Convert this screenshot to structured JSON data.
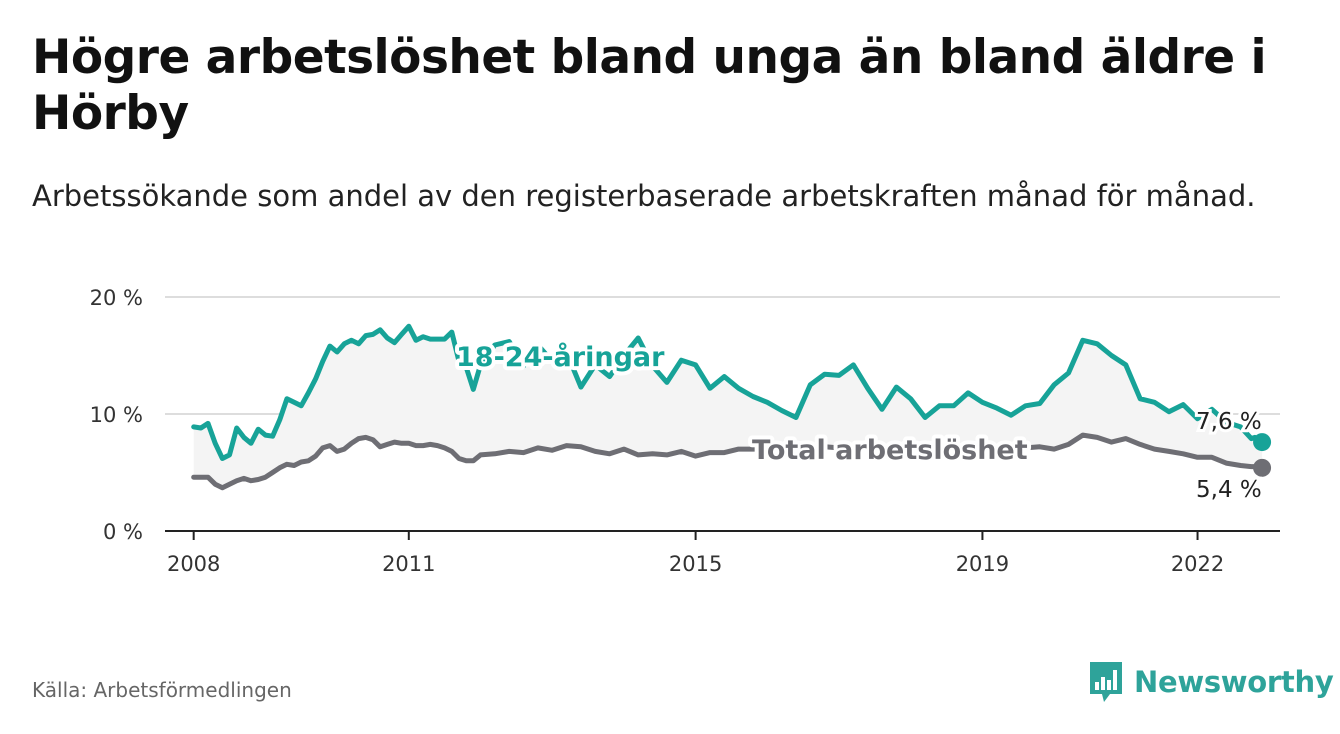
{
  "title": "Högre arbetslöshet bland unga än bland äldre i Hörby",
  "subtitle": "Arbetssökande som andel av den registerbaserade arbetskraften månad för månad.",
  "source": "Källa: Arbetsförmedlingen",
  "brand": {
    "name": "Newsworthy",
    "icon": "newsworthy-logo-icon"
  },
  "colors": {
    "youth": "#17a398",
    "total": "#6e6e74",
    "band": "#f4f4f4",
    "grid": "#dddddd",
    "axis": "#222222"
  },
  "chart_data": {
    "type": "line",
    "title": "Högre arbetslöshet bland unga än bland äldre i Hörby",
    "xlabel": "",
    "ylabel": "",
    "ylim": [
      0,
      20
    ],
    "yticks": [
      0,
      10,
      20
    ],
    "ytick_labels": [
      "0 %",
      "10 %",
      "20 %"
    ],
    "xlim": [
      2007.6,
      2023.15
    ],
    "xticks": [
      2008,
      2011,
      2015,
      2019,
      2022
    ],
    "xtick_labels": [
      "2008",
      "2011",
      "2015",
      "2019",
      "2022"
    ],
    "grid": true,
    "series": [
      {
        "name": "18-24-åringar",
        "label": "18-24-åringar",
        "end_label": "7,6 %",
        "x": [
          2008.0,
          2008.1,
          2008.2,
          2008.3,
          2008.4,
          2008.5,
          2008.6,
          2008.7,
          2008.8,
          2008.9,
          2009.0,
          2009.1,
          2009.2,
          2009.3,
          2009.4,
          2009.5,
          2009.6,
          2009.7,
          2009.8,
          2009.9,
          2010.0,
          2010.1,
          2010.2,
          2010.3,
          2010.4,
          2010.5,
          2010.6,
          2010.7,
          2010.8,
          2010.9,
          2011.0,
          2011.1,
          2011.2,
          2011.3,
          2011.4,
          2011.5,
          2011.6,
          2011.7,
          2011.8,
          2011.9,
          2012.0,
          2012.2,
          2012.4,
          2012.6,
          2012.8,
          2013.0,
          2013.2,
          2013.4,
          2013.6,
          2013.8,
          2014.0,
          2014.2,
          2014.4,
          2014.6,
          2014.8,
          2015.0,
          2015.2,
          2015.4,
          2015.6,
          2015.8,
          2016.0,
          2016.2,
          2016.4,
          2016.6,
          2016.8,
          2017.0,
          2017.2,
          2017.4,
          2017.6,
          2017.8,
          2018.0,
          2018.2,
          2018.4,
          2018.6,
          2018.8,
          2019.0,
          2019.2,
          2019.4,
          2019.6,
          2019.8,
          2020.0,
          2020.2,
          2020.4,
          2020.6,
          2020.8,
          2021.0,
          2021.2,
          2021.4,
          2021.6,
          2021.8,
          2022.0,
          2022.2,
          2022.4,
          2022.6,
          2022.75,
          2022.8,
          2022.9
        ],
        "values": [
          8.9,
          8.8,
          9.2,
          7.5,
          6.2,
          6.5,
          8.8,
          8.0,
          7.5,
          8.7,
          8.2,
          8.1,
          9.5,
          11.3,
          11.0,
          10.7,
          11.8,
          13.0,
          14.5,
          15.8,
          15.3,
          16.0,
          16.3,
          16.0,
          16.7,
          16.8,
          17.2,
          16.5,
          16.1,
          16.8,
          17.5,
          16.3,
          16.6,
          16.4,
          16.4,
          16.4,
          17.0,
          14.5,
          14.0,
          12.1,
          14.2,
          15.9,
          16.2,
          14.1,
          15.9,
          14.5,
          15.3,
          12.3,
          14.2,
          13.2,
          15.0,
          16.5,
          14.1,
          12.7,
          14.6,
          14.2,
          12.2,
          13.2,
          12.2,
          11.5,
          11.0,
          10.3,
          9.7,
          12.5,
          13.4,
          13.3,
          14.2,
          12.2,
          10.4,
          12.3,
          11.3,
          9.7,
          10.7,
          10.7,
          11.8,
          11.0,
          10.5,
          9.9,
          10.7,
          10.9,
          12.5,
          13.5,
          16.3,
          16.0,
          15.0,
          14.2,
          11.3,
          11.0,
          10.2,
          10.8,
          9.6,
          10.4,
          9.3,
          8.9,
          7.9,
          8.0,
          7.6
        ]
      },
      {
        "name": "Total arbetslöshet",
        "label": "Total arbetslöshet",
        "end_label": "5,4 %",
        "x": [
          2008.0,
          2008.1,
          2008.2,
          2008.3,
          2008.4,
          2008.5,
          2008.6,
          2008.7,
          2008.8,
          2008.9,
          2009.0,
          2009.1,
          2009.2,
          2009.3,
          2009.4,
          2009.5,
          2009.6,
          2009.7,
          2009.8,
          2009.9,
          2010.0,
          2010.1,
          2010.2,
          2010.3,
          2010.4,
          2010.5,
          2010.6,
          2010.7,
          2010.8,
          2010.9,
          2011.0,
          2011.1,
          2011.2,
          2011.3,
          2011.4,
          2011.5,
          2011.6,
          2011.7,
          2011.8,
          2011.9,
          2012.0,
          2012.2,
          2012.4,
          2012.6,
          2012.8,
          2013.0,
          2013.2,
          2013.4,
          2013.6,
          2013.8,
          2014.0,
          2014.2,
          2014.4,
          2014.6,
          2014.8,
          2015.0,
          2015.2,
          2015.4,
          2015.6,
          2015.8,
          2016.0,
          2016.2,
          2016.4,
          2016.6,
          2016.8,
          2017.0,
          2017.2,
          2017.4,
          2017.6,
          2017.8,
          2018.0,
          2018.2,
          2018.4,
          2018.6,
          2018.8,
          2019.0,
          2019.2,
          2019.4,
          2019.6,
          2019.8,
          2020.0,
          2020.2,
          2020.4,
          2020.6,
          2020.8,
          2021.0,
          2021.2,
          2021.4,
          2021.6,
          2021.8,
          2022.0,
          2022.2,
          2022.4,
          2022.6,
          2022.75,
          2022.8,
          2022.9
        ],
        "values": [
          4.6,
          4.6,
          4.6,
          4.0,
          3.7,
          4.0,
          4.3,
          4.5,
          4.3,
          4.4,
          4.6,
          5.0,
          5.4,
          5.7,
          5.6,
          5.9,
          6.0,
          6.4,
          7.1,
          7.3,
          6.8,
          7.0,
          7.5,
          7.9,
          8.0,
          7.8,
          7.2,
          7.4,
          7.6,
          7.5,
          7.5,
          7.3,
          7.3,
          7.4,
          7.3,
          7.1,
          6.8,
          6.2,
          6.0,
          6.0,
          6.5,
          6.6,
          6.8,
          6.7,
          7.1,
          6.9,
          7.3,
          7.2,
          6.8,
          6.6,
          7.0,
          6.5,
          6.6,
          6.5,
          6.8,
          6.4,
          6.7,
          6.7,
          7.0,
          7.0,
          7.0,
          7.0,
          7.0,
          7.1,
          7.2,
          7.1,
          7.3,
          7.0,
          7.1,
          7.2,
          7.1,
          7.0,
          7.2,
          7.1,
          7.2,
          7.1,
          7.0,
          7.0,
          7.1,
          7.2,
          7.0,
          7.4,
          8.2,
          8.0,
          7.6,
          7.9,
          7.4,
          7.0,
          6.8,
          6.6,
          6.3,
          6.3,
          5.8,
          5.6,
          5.5,
          5.5,
          5.4
        ]
      }
    ]
  }
}
